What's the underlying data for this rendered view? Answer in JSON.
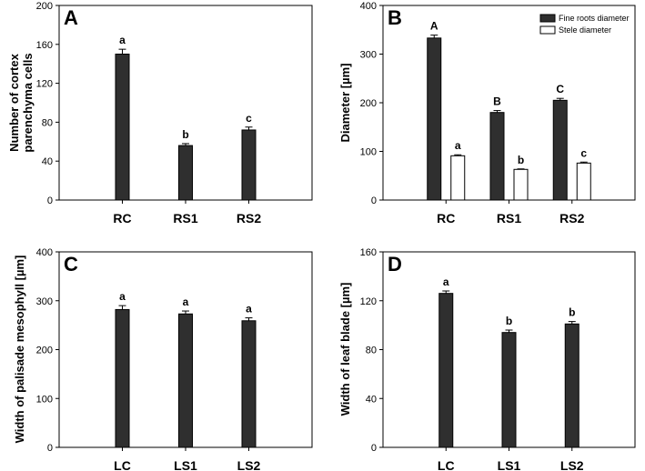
{
  "colors": {
    "dark_bar": "#2f2f2f",
    "light_bar": "#ffffff",
    "axis": "#000000"
  },
  "chart_data": [
    {
      "panel": "A",
      "type": "bar",
      "ylabel": "Number of cortex parenchyma cells",
      "ylabel_lines": [
        "Number of cortex",
        "parenchyma cells"
      ],
      "ylim": [
        0,
        200
      ],
      "yticks": [
        0,
        40,
        80,
        120,
        160,
        200
      ],
      "categories": [
        "RC",
        "RS1",
        "RS2"
      ],
      "series": [
        {
          "values": [
            150,
            56,
            72
          ],
          "errors": [
            5,
            2,
            3
          ],
          "labels": [
            "a",
            "b",
            "c"
          ],
          "color": "dark"
        }
      ],
      "legend": null
    },
    {
      "panel": "B",
      "type": "bar",
      "ylabel": "Diameter [µm]",
      "ylabel_lines": [
        "Diameter [µm]"
      ],
      "ylim": [
        0,
        400
      ],
      "yticks": [
        0,
        100,
        200,
        300,
        400
      ],
      "categories": [
        "RC",
        "RS1",
        "RS2"
      ],
      "series": [
        {
          "name": "Fine roots diameter",
          "values": [
            333,
            180,
            205
          ],
          "errors": [
            6,
            4,
            4
          ],
          "labels": [
            "A",
            "B",
            "C"
          ],
          "color": "dark"
        },
        {
          "name": "Stele diameter",
          "values": [
            91,
            63,
            76
          ],
          "errors": [
            2,
            1,
            2
          ],
          "labels": [
            "a",
            "b",
            "c"
          ],
          "color": "light"
        }
      ],
      "legend": "top-right"
    },
    {
      "panel": "C",
      "type": "bar",
      "ylabel": "Width of palisade mesophyll [µm]",
      "ylabel_lines": [
        "Width of palisade mesophyll [µm]"
      ],
      "ylim": [
        0,
        400
      ],
      "yticks": [
        0,
        100,
        200,
        300,
        400
      ],
      "categories": [
        "LC",
        "LS1",
        "LS2"
      ],
      "series": [
        {
          "values": [
            282,
            273,
            259
          ],
          "errors": [
            8,
            6,
            6
          ],
          "labels": [
            "a",
            "a",
            "a"
          ],
          "color": "dark"
        }
      ],
      "legend": null
    },
    {
      "panel": "D",
      "type": "bar",
      "ylabel": "Width of leaf blade [µm]",
      "ylabel_lines": [
        "Width of leaf blade [µm]"
      ],
      "ylim": [
        0,
        160
      ],
      "yticks": [
        0,
        40,
        80,
        120,
        160
      ],
      "categories": [
        "LC",
        "LS1",
        "LS2"
      ],
      "series": [
        {
          "values": [
            126,
            94,
            101
          ],
          "errors": [
            2,
            2,
            2
          ],
          "labels": [
            "a",
            "b",
            "b"
          ],
          "color": "dark"
        }
      ],
      "legend": null
    }
  ]
}
